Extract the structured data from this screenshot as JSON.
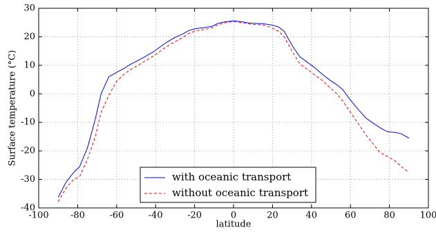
{
  "chart_data": {
    "type": "line",
    "x_label": "latitude",
    "y_label": "Surface temperature (°C)",
    "x": [
      -90,
      -86,
      -82,
      -79,
      -75,
      -71,
      -68,
      -64,
      -60,
      -56,
      -53,
      -49,
      -45,
      -41,
      -38,
      -34,
      -30,
      -26,
      -23,
      -19,
      -15,
      -11,
      -8,
      -4,
      0,
      4,
      8,
      11,
      15,
      19,
      23,
      26,
      30,
      34,
      38,
      41,
      45,
      49,
      53,
      56,
      60,
      64,
      68,
      71,
      75,
      79,
      83,
      86,
      90
    ],
    "series": [
      {
        "name": "with oceanic transport",
        "color": "#0000ff",
        "dash": "solid",
        "values": [
          -36.3,
          -31,
          -27.5,
          -25.5,
          -19,
          -9,
          0,
          6,
          7.5,
          9,
          10.3,
          11.7,
          13.2,
          14.8,
          16.3,
          18.2,
          19.8,
          21,
          22.2,
          22.9,
          23.2,
          23.7,
          24.7,
          25.3,
          25.6,
          25.3,
          24.8,
          24.7,
          24.6,
          24.2,
          23.5,
          21.9,
          17,
          13,
          11,
          9.5,
          7.2,
          5,
          3.2,
          1.5,
          -2.2,
          -5.5,
          -8.5,
          -10,
          -11.8,
          -13.3,
          -13.5,
          -14,
          -15.5
        ]
      },
      {
        "name": "without oceanic transport",
        "color": "#ff0000",
        "dash": "dashed",
        "values": [
          -37.8,
          -33,
          -30,
          -29,
          -23,
          -15,
          -6.5,
          -0.5,
          4.5,
          7,
          8.5,
          10,
          11.7,
          13.3,
          14.8,
          16.7,
          18.3,
          19.8,
          21.2,
          22.2,
          22.5,
          23.2,
          24.2,
          25,
          25.3,
          25,
          24.5,
          24.3,
          24.2,
          23.3,
          22,
          20,
          15,
          10.5,
          8.5,
          7,
          5,
          2.5,
          0,
          -2.5,
          -6.5,
          -10.5,
          -14.5,
          -17,
          -20.5,
          -22,
          -23.5,
          -25.5,
          -27.5
        ]
      }
    ],
    "xlim": [
      -100,
      100
    ],
    "xticks": [
      -100,
      -80,
      -60,
      -40,
      -20,
      0,
      20,
      40,
      60,
      80,
      100
    ],
    "ylim": [
      -40,
      30
    ],
    "yticks": [
      -40,
      -30,
      -20,
      -10,
      0,
      10,
      20,
      30
    ],
    "grid": true,
    "legend": "lower center"
  }
}
